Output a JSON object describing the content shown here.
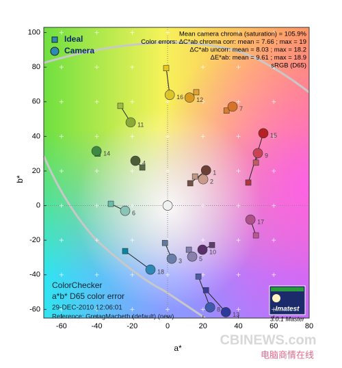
{
  "chart_data": {
    "type": "scatter",
    "x_label": "a*",
    "y_label": "b*",
    "xlim": [
      -70,
      80
    ],
    "ylim": [
      -65,
      103
    ],
    "xticks": [
      -60,
      -40,
      -20,
      0,
      20,
      40,
      60,
      80
    ],
    "yticks": [
      -60,
      -40,
      -20,
      0,
      20,
      40,
      60,
      80,
      100
    ],
    "point_labels": [
      "1",
      "2",
      "3",
      "4",
      "5",
      "6",
      "7",
      "8",
      "9",
      "10",
      "11",
      "12",
      "13",
      "14",
      "15",
      "16",
      "17",
      "18",
      null
    ],
    "series": [
      {
        "name": "Ideal",
        "marker": "square",
        "color": "#2e8ab0",
        "x": [
          12.8,
          15.5,
          -1.5,
          -14.3,
          12.0,
          -32.1,
          33.3,
          17.4,
          49.9,
          25.1,
          -26.7,
          16.2,
          21.7,
          -39.6,
          45.6,
          -0.8,
          49.9,
          -24.0,
          0.0
        ],
        "y": [
          12.9,
          16.8,
          -21.6,
          22.0,
          -25.5,
          1.0,
          54.9,
          -41.0,
          24.8,
          -22.8,
          57.6,
          65.5,
          -48.9,
          30.0,
          13.3,
          79.4,
          -17.2,
          -26.3,
          0.0
        ],
        "colors": [
          "#735244",
          "#c29682",
          "#627a9d",
          "#576c43",
          "#8580b1",
          "#67bdaa",
          "#d67e2c",
          "#505ba6",
          "#c15a63",
          "#5e3c6c",
          "#9dbc40",
          "#e0a32e",
          "#383d96",
          "#469449",
          "#af363c",
          "#e7c71f",
          "#bb5695",
          "#0885a1",
          "#f3f3f2"
        ]
      },
      {
        "name": "Camera",
        "marker": "circle",
        "color": "#2e8ab0",
        "x": [
          21.7,
          20.1,
          2.3,
          -18.2,
          13.9,
          -24.0,
          36.7,
          24.0,
          51.0,
          19.7,
          -20.9,
          12.4,
          32.9,
          -40.2,
          54.1,
          1.2,
          46.8,
          -9.7,
          0.0
        ],
        "y": [
          20.4,
          15.2,
          -30.7,
          25.9,
          -29.5,
          -3.0,
          57.2,
          -58.8,
          30.3,
          -25.5,
          48.1,
          62.4,
          -61.6,
          31.5,
          41.8,
          64.0,
          -8.1,
          -37.0,
          0.0
        ],
        "colors": [
          "#6e3f35",
          "#c89a8a",
          "#6a7ea8",
          "#4b5e35",
          "#8a80b0",
          "#8ac3b8",
          "#d6732a",
          "#3e5aac",
          "#c84455",
          "#5a2e6a",
          "#8aaa38",
          "#d99a20",
          "#2c3a9a",
          "#3c8a40",
          "#b82025",
          "#dcc52a",
          "#b0508a",
          "#2e88b4",
          "#f0f0f0"
        ]
      }
    ],
    "annotations": [
      "Mean camera chroma (saturation) = 105.9%",
      "Color errors:  ΔC*ab chroma corr:  mean = 7.66 ;  max = 19",
      "ΔC*ab uncorr:  mean = 8.03 ;  max = 18.2",
      "ΔE*ab:  mean = 9.61 ;  max = 18.9",
      "sRGB (D65)"
    ],
    "caption": [
      "ColorChecker",
      "a*b* D65 color error",
      "29-DEC-2010 12:06:01",
      "Reference: GretagMacbeth (default) (new)"
    ],
    "logo": {
      "name": "Imatest",
      "version": "3.0.1  Master"
    },
    "watermark": [
      "CBINEWS.com",
      "电脑商情在线"
    ]
  }
}
